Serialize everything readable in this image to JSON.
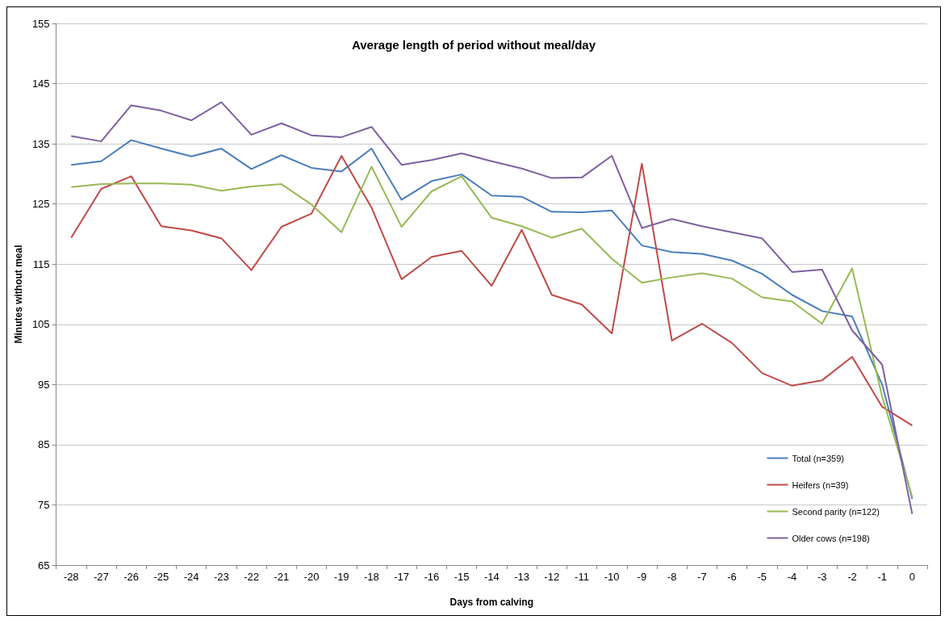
{
  "chart_data": {
    "type": "line",
    "title": "Average length of period without meal/day",
    "xlabel": "Days from calving",
    "ylabel": "Minutes without meal",
    "categories": [
      "-28",
      "-27",
      "-26",
      "-25",
      "-24",
      "-23",
      "-22",
      "-21",
      "-20",
      "-19",
      "-18",
      "-17",
      "-16",
      "-15",
      "-14",
      "-13",
      "-12",
      "-11",
      "-10",
      "-9",
      "-8",
      "-7",
      "-6",
      "-5",
      "-4",
      "-3",
      "-2",
      "-1",
      "0"
    ],
    "series": [
      {
        "name": "Total (n=359)",
        "color": "#4a7ebb",
        "values": [
          131.5,
          132.1,
          135.6,
          134.2,
          132.9,
          134.2,
          130.8,
          133.1,
          131.0,
          130.4,
          134.2,
          125.7,
          128.8,
          129.9,
          126.4,
          126.2,
          123.7,
          123.6,
          123.9,
          118.1,
          117.0,
          116.7,
          115.6,
          113.4,
          109.9,
          107.2,
          106.3,
          95,
          76
        ]
      },
      {
        "name": "Heifers (n=39)",
        "color": "#be4b48",
        "values": [
          119.4,
          127.5,
          129.6,
          121.3,
          120.6,
          119.3,
          114.0,
          121.2,
          123.4,
          133.0,
          124.4,
          112.5,
          116.2,
          117.2,
          111.4,
          120.7,
          109.9,
          108.3,
          103.5,
          131.7,
          102.3,
          105.1,
          101.9,
          96.9,
          94.8,
          95.7,
          99.6,
          91.3,
          88.2
        ]
      },
      {
        "name": "Second parity (n=122)",
        "color": "#98b954",
        "values": [
          127.8,
          128.3,
          128.4,
          128.4,
          128.2,
          127.2,
          127.9,
          128.3,
          124.9,
          120.3,
          131.2,
          121.2,
          127.1,
          129.6,
          122.7,
          121.3,
          119.4,
          120.9,
          115.9,
          111.9,
          112.8,
          113.5,
          112.6,
          109.5,
          108.8,
          105.1,
          114.3,
          93,
          76.3
        ]
      },
      {
        "name": "Older cows (n=198)",
        "color": "#7d60a0",
        "values": [
          136.3,
          135.4,
          141.4,
          140.5,
          138.9,
          141.9,
          136.5,
          138.4,
          136.4,
          136.1,
          137.8,
          131.5,
          132.3,
          133.4,
          132.1,
          130.9,
          129.3,
          129.4,
          133.0,
          121.0,
          122.5,
          121.3,
          120.3,
          119.3,
          113.7,
          114.1,
          104.0,
          98.3,
          73.5
        ]
      }
    ],
    "ylim": [
      65,
      155
    ],
    "yticks": [
      65,
      75,
      85,
      95,
      105,
      115,
      125,
      135,
      145,
      155
    ],
    "grid": "y",
    "legend": "bottom right",
    "marker": "none",
    "line_style": "solid"
  }
}
